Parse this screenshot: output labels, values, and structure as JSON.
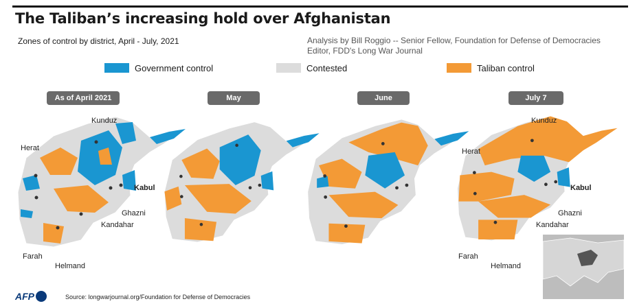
{
  "title": "The Taliban’s increasing hold over Afghanistan",
  "subtitle": "Zones of control by district, April - July, 2021",
  "credit": {
    "line1": "Analysis by Bill Roggio -- Senior Fellow, Foundation for Defense of Democracies",
    "line2": "Editor, FDD's Long War Journal"
  },
  "legend": [
    {
      "label": "Government control",
      "color": "#1a96d1"
    },
    {
      "label": "Contested",
      "color": "#dcdcdc"
    },
    {
      "label": "Taliban control",
      "color": "#f39a36"
    }
  ],
  "panels": [
    {
      "label": "As of April 2021"
    },
    {
      "label": "May"
    },
    {
      "label": "June"
    },
    {
      "label": "July 7"
    }
  ],
  "places": {
    "kunduz": "Kunduz",
    "herat": "Herat",
    "kabul": "Kabul",
    "ghazni": "Ghazni",
    "kandahar": "Kandahar",
    "farah": "Farah",
    "helmand": "Helmand"
  },
  "logo": "AFP",
  "source": "Source: longwarjournal.org/Foundation for Defense of Democracies",
  "colors": {
    "government": "#1a96d1",
    "contested": "#dcdcdc",
    "taliban": "#f39a36",
    "pill": "#6a6a6a"
  }
}
